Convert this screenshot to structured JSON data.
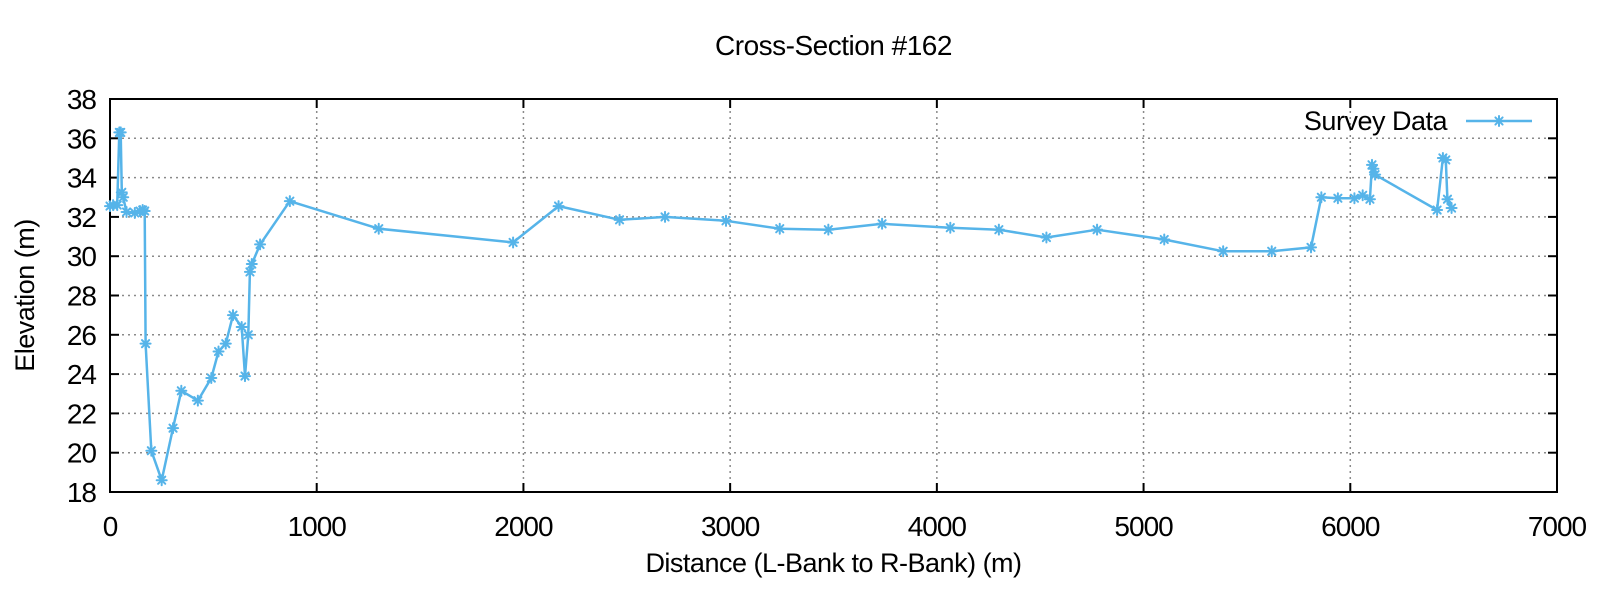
{
  "chart_data": {
    "type": "line",
    "title": "Cross-Section #162",
    "xlabel": "Distance (L-Bank to R-Bank) (m)",
    "ylabel": "Elevation (m)",
    "xlim": [
      0,
      7000
    ],
    "ylim": [
      18,
      38
    ],
    "xticks": [
      0,
      1000,
      2000,
      3000,
      4000,
      5000,
      6000,
      7000
    ],
    "yticks": [
      18,
      20,
      22,
      24,
      26,
      28,
      30,
      32,
      34,
      36,
      38
    ],
    "grid": "dotted",
    "grid_color": "#8a8a8a",
    "axis_color": "#000000",
    "background_color": "#ffffff",
    "legend": {
      "label": "Survey Data",
      "position": "top-right"
    },
    "series": [
      {
        "name": "Survey Data",
        "color": "#56b4e9",
        "marker": "asterisk",
        "style": "linespoints",
        "points": [
          [
            0,
            32.55
          ],
          [
            15,
            32.6
          ],
          [
            35,
            32.6
          ],
          [
            45,
            36.3
          ],
          [
            52,
            36.3
          ],
          [
            57,
            33.25
          ],
          [
            64,
            33.0
          ],
          [
            80,
            32.25
          ],
          [
            120,
            32.2
          ],
          [
            145,
            32.3
          ],
          [
            158,
            32.35
          ],
          [
            168,
            32.3
          ],
          [
            172,
            25.55
          ],
          [
            200,
            20.1
          ],
          [
            250,
            18.6
          ],
          [
            305,
            21.25
          ],
          [
            345,
            23.15
          ],
          [
            425,
            22.65
          ],
          [
            490,
            23.8
          ],
          [
            525,
            25.15
          ],
          [
            560,
            25.55
          ],
          [
            595,
            27.0
          ],
          [
            637,
            26.4
          ],
          [
            653,
            23.9
          ],
          [
            669,
            26.0
          ],
          [
            677,
            29.2
          ],
          [
            686,
            29.6
          ],
          [
            726,
            30.6
          ],
          [
            870,
            32.8
          ],
          [
            1300,
            31.4
          ],
          [
            1950,
            30.7
          ],
          [
            2170,
            32.55
          ],
          [
            2465,
            31.85
          ],
          [
            2685,
            32.0
          ],
          [
            2980,
            31.8
          ],
          [
            3240,
            31.4
          ],
          [
            3475,
            31.35
          ],
          [
            3735,
            31.65
          ],
          [
            4065,
            31.45
          ],
          [
            4300,
            31.35
          ],
          [
            4530,
            30.95
          ],
          [
            4775,
            31.35
          ],
          [
            5100,
            30.85
          ],
          [
            5385,
            30.25
          ],
          [
            5620,
            30.25
          ],
          [
            5810,
            30.45
          ],
          [
            5860,
            33.0
          ],
          [
            5940,
            32.95
          ],
          [
            6020,
            32.95
          ],
          [
            6060,
            33.1
          ],
          [
            6095,
            32.9
          ],
          [
            6105,
            34.65
          ],
          [
            6112,
            34.45
          ],
          [
            6120,
            34.15
          ],
          [
            6420,
            32.35
          ],
          [
            6448,
            35.0
          ],
          [
            6462,
            34.9
          ],
          [
            6470,
            32.9
          ],
          [
            6490,
            32.45
          ]
        ]
      }
    ]
  }
}
